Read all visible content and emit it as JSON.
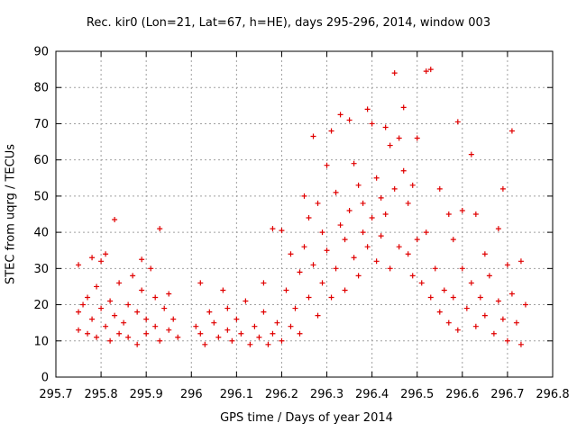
{
  "chart_data": {
    "type": "scatter",
    "title": "Rec. kir0 (Lon=21, Lat=67, h=HE), days 295-296, 2014, window 003",
    "xlabel": "GPS time / Days of year 2014",
    "ylabel": "STEC from uqrg / TECUs",
    "xlim": [
      295.7,
      296.8
    ],
    "ylim": [
      0,
      90
    ],
    "xticks": [
      "295.7",
      "295.8",
      "295.9",
      "296",
      "296.1",
      "296.2",
      "296.3",
      "296.4",
      "296.5",
      "296.6",
      "296.7",
      "296.8"
    ],
    "yticks": [
      "0",
      "10",
      "20",
      "30",
      "40",
      "50",
      "60",
      "70",
      "80",
      "90"
    ],
    "grid": true,
    "marker": "+",
    "color": "#e00000",
    "points": [
      [
        295.75,
        31
      ],
      [
        295.75,
        18
      ],
      [
        295.75,
        13
      ],
      [
        295.76,
        20
      ],
      [
        295.77,
        12
      ],
      [
        295.77,
        22
      ],
      [
        295.78,
        33
      ],
      [
        295.78,
        16
      ],
      [
        295.79,
        11
      ],
      [
        295.79,
        25
      ],
      [
        295.8,
        32
      ],
      [
        295.8,
        19
      ],
      [
        295.81,
        34
      ],
      [
        295.81,
        14
      ],
      [
        295.82,
        21
      ],
      [
        295.82,
        10
      ],
      [
        295.83,
        43.5
      ],
      [
        295.83,
        17
      ],
      [
        295.84,
        12
      ],
      [
        295.84,
        26
      ],
      [
        295.85,
        15
      ],
      [
        295.86,
        20
      ],
      [
        295.86,
        11
      ],
      [
        295.87,
        28
      ],
      [
        295.88,
        18
      ],
      [
        295.88,
        9
      ],
      [
        295.89,
        32.5
      ],
      [
        295.89,
        24
      ],
      [
        295.9,
        16
      ],
      [
        295.9,
        12
      ],
      [
        295.91,
        30
      ],
      [
        295.92,
        22
      ],
      [
        295.92,
        14
      ],
      [
        295.93,
        41
      ],
      [
        295.93,
        10
      ],
      [
        295.94,
        19
      ],
      [
        295.95,
        23
      ],
      [
        295.95,
        13
      ],
      [
        295.96,
        16
      ],
      [
        295.97,
        11
      ],
      [
        296.01,
        14
      ],
      [
        296.02,
        26
      ],
      [
        296.02,
        12
      ],
      [
        296.03,
        9
      ],
      [
        296.04,
        18
      ],
      [
        296.05,
        15
      ],
      [
        296.06,
        11
      ],
      [
        296.07,
        24
      ],
      [
        296.08,
        13
      ],
      [
        296.08,
        19
      ],
      [
        296.09,
        10
      ],
      [
        296.1,
        16
      ],
      [
        296.11,
        12
      ],
      [
        296.12,
        21
      ],
      [
        296.13,
        9
      ],
      [
        296.14,
        14
      ],
      [
        296.15,
        11
      ],
      [
        296.16,
        26
      ],
      [
        296.16,
        18
      ],
      [
        296.17,
        9
      ],
      [
        296.18,
        41
      ],
      [
        296.18,
        12
      ],
      [
        296.19,
        15
      ],
      [
        296.2,
        40.5
      ],
      [
        296.2,
        10
      ],
      [
        296.21,
        24
      ],
      [
        296.22,
        34
      ],
      [
        296.22,
        14
      ],
      [
        296.23,
        19
      ],
      [
        296.24,
        29
      ],
      [
        296.24,
        12
      ],
      [
        296.25,
        50
      ],
      [
        296.25,
        36
      ],
      [
        296.26,
        44
      ],
      [
        296.26,
        22
      ],
      [
        296.27,
        66.5
      ],
      [
        296.27,
        31
      ],
      [
        296.28,
        48
      ],
      [
        296.28,
        17
      ],
      [
        296.29,
        40
      ],
      [
        296.29,
        26
      ],
      [
        296.3,
        58.5
      ],
      [
        296.3,
        35
      ],
      [
        296.31,
        68
      ],
      [
        296.31,
        22
      ],
      [
        296.32,
        51
      ],
      [
        296.32,
        30
      ],
      [
        296.33,
        72.5
      ],
      [
        296.33,
        42
      ],
      [
        296.34,
        38
      ],
      [
        296.34,
        24
      ],
      [
        296.35,
        71
      ],
      [
        296.35,
        46
      ],
      [
        296.36,
        59
      ],
      [
        296.36,
        33
      ],
      [
        296.37,
        53
      ],
      [
        296.37,
        28
      ],
      [
        296.38,
        48
      ],
      [
        296.38,
        40
      ],
      [
        296.39,
        74
      ],
      [
        296.39,
        36
      ],
      [
        296.4,
        70
      ],
      [
        296.4,
        44
      ],
      [
        296.41,
        55
      ],
      [
        296.41,
        32
      ],
      [
        296.42,
        49.5
      ],
      [
        296.42,
        39
      ],
      [
        296.43,
        69
      ],
      [
        296.43,
        45
      ],
      [
        296.44,
        64
      ],
      [
        296.44,
        30
      ],
      [
        296.45,
        84
      ],
      [
        296.45,
        52
      ],
      [
        296.46,
        66
      ],
      [
        296.46,
        36
      ],
      [
        296.47,
        74.5
      ],
      [
        296.47,
        57
      ],
      [
        296.48,
        48
      ],
      [
        296.48,
        34
      ],
      [
        296.49,
        53
      ],
      [
        296.49,
        28
      ],
      [
        296.5,
        66
      ],
      [
        296.5,
        38
      ],
      [
        296.51,
        26
      ],
      [
        296.52,
        84.5
      ],
      [
        296.52,
        40
      ],
      [
        296.53,
        85
      ],
      [
        296.53,
        22
      ],
      [
        296.54,
        30
      ],
      [
        296.55,
        52
      ],
      [
        296.55,
        18
      ],
      [
        296.56,
        24
      ],
      [
        296.57,
        45
      ],
      [
        296.57,
        15
      ],
      [
        296.58,
        38
      ],
      [
        296.58,
        22
      ],
      [
        296.59,
        70.5
      ],
      [
        296.59,
        13
      ],
      [
        296.6,
        46
      ],
      [
        296.6,
        30
      ],
      [
        296.61,
        19
      ],
      [
        296.62,
        61.5
      ],
      [
        296.62,
        26
      ],
      [
        296.63,
        45
      ],
      [
        296.63,
        14
      ],
      [
        296.64,
        22
      ],
      [
        296.65,
        34
      ],
      [
        296.65,
        17
      ],
      [
        296.66,
        28
      ],
      [
        296.67,
        12
      ],
      [
        296.68,
        41
      ],
      [
        296.68,
        21
      ],
      [
        296.69,
        52
      ],
      [
        296.69,
        16
      ],
      [
        296.7,
        31
      ],
      [
        296.7,
        10
      ],
      [
        296.71,
        68
      ],
      [
        296.71,
        23
      ],
      [
        296.72,
        15
      ],
      [
        296.73,
        32
      ],
      [
        296.73,
        9
      ],
      [
        296.74,
        20
      ]
    ]
  }
}
